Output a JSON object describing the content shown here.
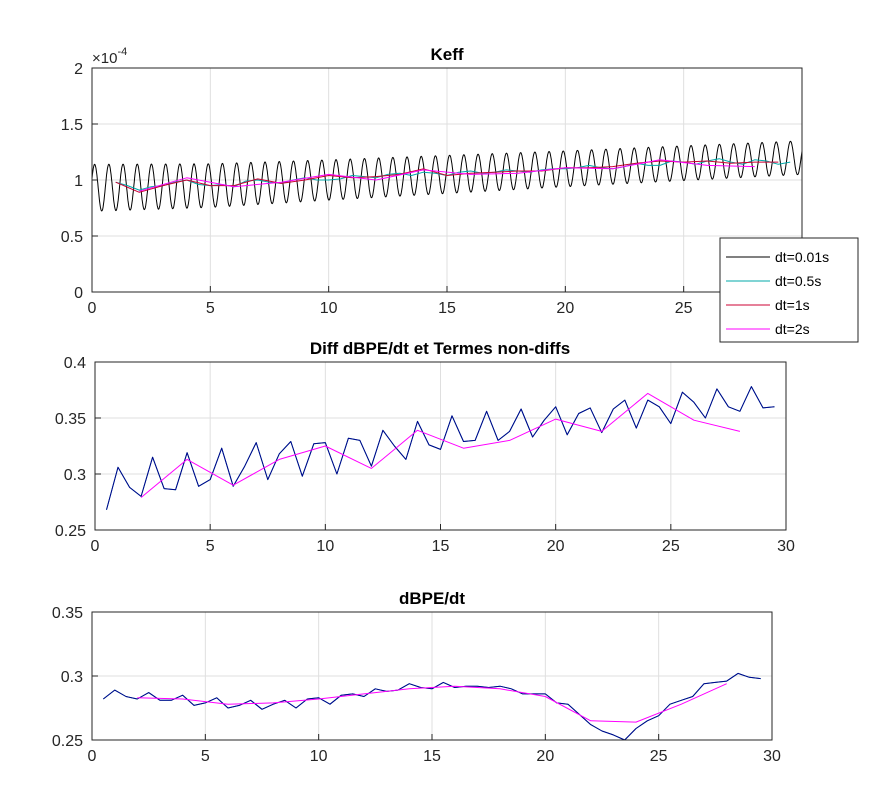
{
  "chart_data": [
    {
      "type": "line",
      "title": "Keff",
      "xlabel": "",
      "ylabel": "",
      "xlim": [
        0,
        30
      ],
      "ylim": [
        0,
        2
      ],
      "x_ticks": [
        0,
        5,
        10,
        15,
        20,
        25
      ],
      "x_tick_labels": [
        "0",
        "5",
        "10",
        "15",
        "20",
        "25"
      ],
      "y_ticks": [
        0,
        0.5,
        1,
        1.5,
        2
      ],
      "y_tick_labels": [
        "0",
        "0.5",
        "1",
        "1.5",
        "2"
      ],
      "y_exponent_base": "×10",
      "y_exponent_power": "-4",
      "grid": true,
      "legend": {
        "placement": "bottom-right",
        "entries": [
          "dt=0.01s",
          "dt=0.5s",
          "dt=1s",
          "dt=2s"
        ]
      },
      "series": [
        {
          "name": "dt=0.01s",
          "color": "#000000",
          "style": "oscillating",
          "x_start": 0,
          "x_end": 30,
          "trend": [
            [
              0,
              0.93
            ],
            [
              5,
              0.95
            ],
            [
              10,
              1.0
            ],
            [
              15,
              1.05
            ],
            [
              20,
              1.1
            ],
            [
              25,
              1.15
            ],
            [
              30,
              1.2
            ]
          ],
          "amplitude": [
            [
              0,
              0.21
            ],
            [
              10,
              0.18
            ],
            [
              20,
              0.16
            ],
            [
              30,
              0.15
            ]
          ],
          "period": 0.6
        },
        {
          "name": "dt=0.5s",
          "color": "#00a8a8",
          "x": [
            1,
            1.5,
            2,
            2.5,
            3,
            3.5,
            4,
            4.5,
            5,
            5.5,
            6,
            6.5,
            7,
            7.5,
            8,
            8.5,
            9,
            9.5,
            10,
            10.5,
            11,
            11.5,
            12,
            12.5,
            13,
            13.5,
            14,
            14.5,
            15,
            15.5,
            16,
            16.5,
            17,
            17.5,
            18,
            18.5,
            19,
            19.5,
            20,
            20.5,
            21,
            21.5,
            22,
            22.5,
            23,
            23.5,
            24,
            24.5,
            25,
            25.5,
            26,
            26.5,
            27,
            27.5,
            28,
            28.5,
            29,
            29.5
          ],
          "y": [
            0.98,
            0.95,
            0.91,
            0.94,
            0.95,
            0.98,
            1.0,
            0.96,
            0.95,
            0.96,
            0.94,
            0.99,
            1.0,
            0.98,
            0.97,
            1.0,
            1.02,
            1.0,
            1.0,
            1.01,
            1.04,
            1.03,
            1.02,
            1.05,
            1.06,
            1.04,
            1.07,
            1.06,
            1.04,
            1.07,
            1.08,
            1.06,
            1.07,
            1.09,
            1.08,
            1.07,
            1.09,
            1.1,
            1.1,
            1.11,
            1.13,
            1.11,
            1.1,
            1.12,
            1.15,
            1.13,
            1.13,
            1.17,
            1.16,
            1.14,
            1.17,
            1.19,
            1.16,
            1.14,
            1.18,
            1.17,
            1.14,
            1.16
          ]
        },
        {
          "name": "dt=1s",
          "color": "#cc0033",
          "x": [
            1,
            2,
            3,
            4,
            5,
            6,
            7,
            8,
            9,
            10,
            11,
            12,
            13,
            14,
            15,
            16,
            17,
            18,
            19,
            20,
            21,
            22,
            23,
            24,
            25,
            26,
            27,
            28,
            29
          ],
          "y": [
            0.98,
            0.89,
            0.95,
            1.0,
            0.95,
            0.95,
            1.01,
            0.97,
            1.0,
            1.04,
            1.02,
            1.03,
            1.05,
            1.1,
            1.04,
            1.06,
            1.07,
            1.08,
            1.08,
            1.11,
            1.11,
            1.12,
            1.15,
            1.17,
            1.16,
            1.17,
            1.15,
            1.16,
            1.16
          ]
        },
        {
          "name": "dt=2s",
          "color": "#ff00ff",
          "x": [
            2,
            4,
            6,
            8,
            10,
            12,
            14,
            16,
            18,
            20,
            22,
            24,
            26,
            28
          ],
          "y": [
            0.9,
            1.02,
            0.94,
            0.98,
            1.05,
            1.0,
            1.09,
            1.05,
            1.06,
            1.11,
            1.1,
            1.18,
            1.13,
            1.12
          ]
        }
      ]
    },
    {
      "type": "line",
      "title": "Diff dBPE/dt et Termes non-diffs",
      "xlabel": "",
      "ylabel": "",
      "xlim": [
        0,
        30
      ],
      "ylim": [
        0.25,
        0.4
      ],
      "x_ticks": [
        0,
        5,
        10,
        15,
        20,
        25,
        30
      ],
      "x_tick_labels": [
        "0",
        "5",
        "10",
        "15",
        "20",
        "25",
        "30"
      ],
      "y_ticks": [
        0.25,
        0.3,
        0.35,
        0.4
      ],
      "y_tick_labels": [
        "0.25",
        "0.3",
        "0.35",
        "0.4"
      ],
      "grid": true,
      "series": [
        {
          "name": "dt=0.5s",
          "color": "#00a8a8",
          "x": [
            0.5,
            1,
            1.5,
            2,
            2.5,
            3,
            3.5,
            4,
            4.5,
            5,
            5.5,
            6,
            6.5,
            7,
            7.5,
            8,
            8.5,
            9,
            9.5,
            10,
            10.5,
            11,
            11.5,
            12,
            12.5,
            13,
            13.5,
            14,
            14.5,
            15,
            15.5,
            16,
            16.5,
            17,
            17.5,
            18,
            18.5,
            19,
            19.5,
            20,
            20.5,
            21,
            21.5,
            22,
            22.5,
            23,
            23.5,
            24,
            24.5,
            25,
            25.5,
            26,
            26.5,
            27,
            27.5,
            28,
            28.5,
            29,
            29.5
          ],
          "y": [
            0.268,
            0.306,
            0.288,
            0.28,
            0.315,
            0.287,
            0.286,
            0.319,
            0.289,
            0.295,
            0.323,
            0.289,
            0.307,
            0.328,
            0.295,
            0.318,
            0.329,
            0.298,
            0.327,
            0.328,
            0.3,
            0.332,
            0.33,
            0.307,
            0.339,
            0.325,
            0.313,
            0.347,
            0.326,
            0.322,
            0.352,
            0.329,
            0.33,
            0.356,
            0.33,
            0.338,
            0.358,
            0.333,
            0.348,
            0.36,
            0.335,
            0.354,
            0.359,
            0.337,
            0.358,
            0.366,
            0.341,
            0.366,
            0.36,
            0.345,
            0.373,
            0.364,
            0.35,
            0.376,
            0.36,
            0.356,
            0.378,
            0.359,
            0.36
          ]
        },
        {
          "name": "dt=1s",
          "color": "#00008b",
          "x": [
            0.5,
            1,
            1.5,
            2,
            2.5,
            3,
            3.5,
            4,
            4.5,
            5,
            5.5,
            6,
            6.5,
            7,
            7.5,
            8,
            8.5,
            9,
            9.5,
            10,
            10.5,
            11,
            11.5,
            12,
            12.5,
            13,
            13.5,
            14,
            14.5,
            15,
            15.5,
            16,
            16.5,
            17,
            17.5,
            18,
            18.5,
            19,
            19.5,
            20,
            20.5,
            21,
            21.5,
            22,
            22.5,
            23,
            23.5,
            24,
            24.5,
            25,
            25.5,
            26,
            26.5,
            27,
            27.5,
            28,
            28.5,
            29,
            29.5
          ],
          "y": [
            0.268,
            0.306,
            0.288,
            0.28,
            0.315,
            0.287,
            0.286,
            0.319,
            0.289,
            0.295,
            0.323,
            0.289,
            0.307,
            0.328,
            0.295,
            0.318,
            0.329,
            0.298,
            0.327,
            0.328,
            0.3,
            0.332,
            0.33,
            0.307,
            0.339,
            0.325,
            0.313,
            0.347,
            0.326,
            0.322,
            0.352,
            0.329,
            0.33,
            0.356,
            0.33,
            0.338,
            0.358,
            0.333,
            0.348,
            0.36,
            0.335,
            0.354,
            0.359,
            0.337,
            0.358,
            0.366,
            0.341,
            0.366,
            0.36,
            0.345,
            0.373,
            0.364,
            0.35,
            0.376,
            0.36,
            0.356,
            0.378,
            0.359,
            0.36
          ]
        },
        {
          "name": "dt=2s",
          "color": "#ff00ff",
          "x": [
            2,
            4,
            6,
            8,
            10,
            12,
            14,
            16,
            18,
            20,
            22,
            24,
            26,
            28
          ],
          "y": [
            0.279,
            0.313,
            0.29,
            0.313,
            0.325,
            0.305,
            0.339,
            0.323,
            0.33,
            0.349,
            0.338,
            0.372,
            0.348,
            0.338
          ]
        }
      ]
    },
    {
      "type": "line",
      "title": "dBPE/dt",
      "xlabel": "",
      "ylabel": "",
      "xlim": [
        0,
        30
      ],
      "ylim": [
        0.25,
        0.35
      ],
      "x_ticks": [
        0,
        5,
        10,
        15,
        20,
        25,
        30
      ],
      "x_tick_labels": [
        "0",
        "5",
        "10",
        "15",
        "20",
        "25",
        "30"
      ],
      "y_ticks": [
        0.25,
        0.3,
        0.35
      ],
      "y_tick_labels": [
        "0.25",
        "0.3",
        "0.35"
      ],
      "grid": true,
      "series": [
        {
          "name": "dt=0.5s",
          "color": "#00a8a8",
          "x": [
            0.5,
            1,
            1.5,
            2,
            2.5,
            3,
            3.5,
            4,
            4.5,
            5,
            5.5,
            6,
            6.5,
            7,
            7.5,
            8,
            8.5,
            9,
            9.5,
            10,
            10.5,
            11,
            11.5,
            12,
            12.5,
            13,
            13.5,
            14,
            14.5,
            15,
            15.5,
            16,
            16.5,
            17,
            17.5,
            18,
            18.5,
            19,
            19.5,
            20,
            20.5,
            21,
            21.5,
            22,
            22.5,
            23,
            23.5,
            24,
            24.5,
            25,
            25.5,
            26,
            26.5,
            27,
            27.5,
            28,
            28.5,
            29,
            29.5
          ],
          "y": [
            0.282,
            0.289,
            0.284,
            0.282,
            0.287,
            0.281,
            0.281,
            0.285,
            0.277,
            0.279,
            0.283,
            0.275,
            0.277,
            0.281,
            0.274,
            0.278,
            0.281,
            0.275,
            0.282,
            0.283,
            0.278,
            0.285,
            0.286,
            0.284,
            0.29,
            0.288,
            0.289,
            0.294,
            0.291,
            0.29,
            0.295,
            0.291,
            0.292,
            0.292,
            0.291,
            0.292,
            0.29,
            0.286,
            0.286,
            0.286,
            0.279,
            0.278,
            0.27,
            0.262,
            0.257,
            0.254,
            0.25,
            0.259,
            0.265,
            0.269,
            0.278,
            0.281,
            0.284,
            0.294,
            0.295,
            0.296,
            0.302,
            0.299,
            0.298
          ]
        },
        {
          "name": "dt=1s",
          "color": "#00008b",
          "x": [
            0.5,
            1,
            1.5,
            2,
            2.5,
            3,
            3.5,
            4,
            4.5,
            5,
            5.5,
            6,
            6.5,
            7,
            7.5,
            8,
            8.5,
            9,
            9.5,
            10,
            10.5,
            11,
            11.5,
            12,
            12.5,
            13,
            13.5,
            14,
            14.5,
            15,
            15.5,
            16,
            16.5,
            17,
            17.5,
            18,
            18.5,
            19,
            19.5,
            20,
            20.5,
            21,
            21.5,
            22,
            22.5,
            23,
            23.5,
            24,
            24.5,
            25,
            25.5,
            26,
            26.5,
            27,
            27.5,
            28,
            28.5,
            29,
            29.5
          ],
          "y": [
            0.282,
            0.289,
            0.284,
            0.282,
            0.287,
            0.281,
            0.281,
            0.285,
            0.277,
            0.279,
            0.283,
            0.275,
            0.277,
            0.281,
            0.274,
            0.278,
            0.281,
            0.275,
            0.282,
            0.283,
            0.278,
            0.285,
            0.286,
            0.284,
            0.29,
            0.288,
            0.289,
            0.294,
            0.291,
            0.29,
            0.295,
            0.291,
            0.292,
            0.292,
            0.291,
            0.292,
            0.29,
            0.286,
            0.286,
            0.286,
            0.279,
            0.278,
            0.27,
            0.262,
            0.257,
            0.254,
            0.25,
            0.259,
            0.265,
            0.269,
            0.278,
            0.281,
            0.284,
            0.294,
            0.295,
            0.296,
            0.302,
            0.299,
            0.298
          ]
        },
        {
          "name": "dt=2s",
          "color": "#ff00ff",
          "x": [
            2,
            4,
            6,
            8,
            10,
            12,
            14,
            16,
            18,
            20,
            22,
            24,
            26,
            28
          ],
          "y": [
            0.283,
            0.282,
            0.278,
            0.279,
            0.282,
            0.286,
            0.29,
            0.292,
            0.29,
            0.284,
            0.265,
            0.264,
            0.278,
            0.294
          ]
        }
      ]
    }
  ]
}
